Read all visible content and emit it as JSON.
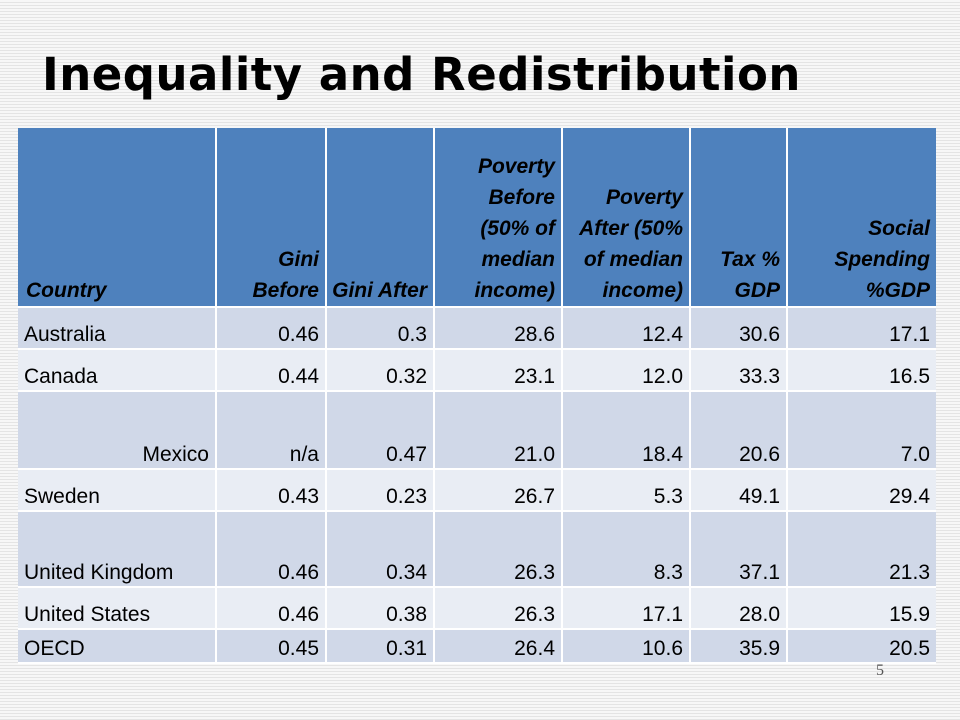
{
  "slide": {
    "title": "Inequality and Redistribution",
    "page_number": "5"
  },
  "table": {
    "headers": [
      "Country",
      "Gini Before",
      "Gini After",
      "Poverty Before (50% of median income)",
      "Poverty After (50% of median income)",
      "Tax % GDP",
      "Social Spending %GDP"
    ],
    "rows": [
      [
        "Australia",
        "0.46",
        "0.3",
        "28.6",
        "12.4",
        "30.6",
        "17.1"
      ],
      [
        "Canada",
        "0.44",
        "0.32",
        "23.1",
        "12.0",
        "33.3",
        "16.5"
      ],
      [
        "Mexico",
        "n/a",
        "0.47",
        "21.0",
        "18.4",
        "20.6",
        "7.0"
      ],
      [
        "Sweden",
        "0.43",
        "0.23",
        "26.7",
        "5.3",
        "49.1",
        "29.4"
      ],
      [
        "United Kingdom",
        "0.46",
        "0.34",
        "26.3",
        "8.3",
        "37.1",
        "21.3"
      ],
      [
        "United States",
        "0.46",
        "0.38",
        "26.3",
        "17.1",
        "28.0",
        "15.9"
      ],
      [
        "OECD",
        "0.45",
        "0.31",
        "26.4",
        "10.6",
        "35.9",
        "20.5"
      ]
    ]
  },
  "colors": {
    "header_background": "#4e81bd",
    "row_band_dark": "#d0d8e8",
    "row_band_light": "#e9edf4"
  }
}
